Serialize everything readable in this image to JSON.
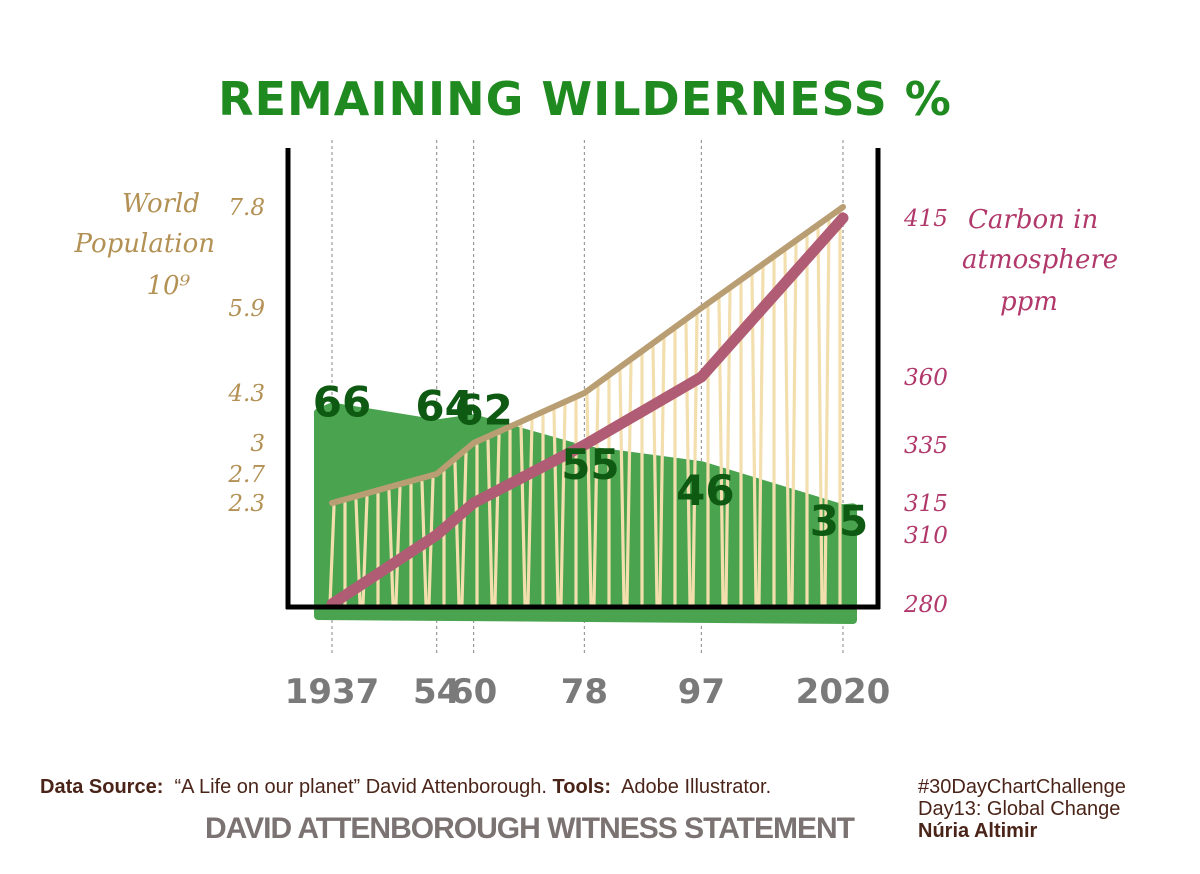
{
  "chart_data": {
    "type": "area",
    "title": "REMAINING WILDERNESS %",
    "x": [
      1937,
      1954,
      1960,
      1978,
      1997,
      2020
    ],
    "x_tick_labels": [
      "1937",
      "54",
      "60",
      "78",
      "97",
      "2020"
    ],
    "series": [
      {
        "name": "",
        "axis": "wilderness",
        "values": [
          66,
          64,
          62,
          55,
          46,
          35
        ],
        "data_labels": [
          "66",
          "64",
          "62",
          "55",
          "46",
          "35"
        ]
      },
      {
        "name": "World Population",
        "axis": "left",
        "values": [
          2.3,
          2.7,
          3,
          4.3,
          5.9,
          7.8
        ]
      },
      {
        "name": "Carbon in atmosphere",
        "axis": "right",
        "values": [
          280,
          310,
          315,
          335,
          360,
          415
        ]
      }
    ],
    "left_axis": {
      "label_lines": [
        "World",
        "Population",
        "10⁹"
      ],
      "ticks": [
        7.8,
        5.9,
        4.3,
        3,
        2.7,
        2.3
      ],
      "tick_labels": [
        "7.8",
        "5.9",
        "4.3",
        "3",
        "2.7",
        "2.3"
      ]
    },
    "right_axis": {
      "label_lines": [
        "Carbon in",
        "atmosphere",
        "ppm"
      ],
      "ticks": [
        415,
        360,
        335,
        315,
        310,
        280
      ],
      "tick_labels": [
        "415",
        "360",
        "335",
        "315",
        "310",
        "280"
      ]
    },
    "wilderness_ylim": [
      0,
      100
    ],
    "grid": "vertical dashed at each year",
    "colors": {
      "wilderness": "#4aa34f",
      "population": "#b89e72",
      "carbon": "#b05c74",
      "title": "#1f8a1f",
      "years": "#7a7a7a"
    }
  },
  "footer": {
    "source_label": "Data Source:",
    "source_text": "“A Life on our planet” David Attenborough.",
    "tools_label": "Tools:",
    "tools_text": "Adobe Illustrator.",
    "statement": "DAVID ATTENBOROUGH WITNESS STATEMENT",
    "hashtag": "#30DayChartChallenge",
    "day": "Day13: Global Change",
    "author": "Núria Altimir"
  }
}
